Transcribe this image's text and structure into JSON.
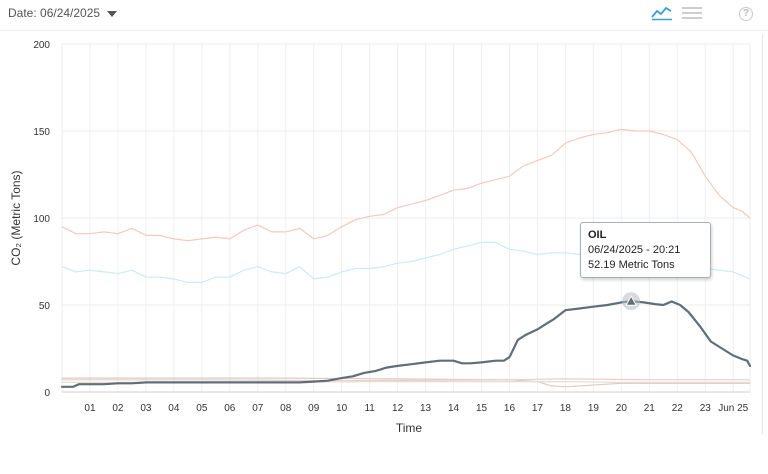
{
  "header": {
    "date_label": "Date: 06/24/2025",
    "chart_view_icon": "line-chart-icon",
    "menu_icon": "hamburger-menu-icon",
    "help_icon": "help-icon",
    "help_glyph": "?"
  },
  "tooltip": {
    "series": "OIL",
    "datetime": "06/24/2025 - 20:21",
    "value_text": "52.19 Metric Tons"
  },
  "chart_data": {
    "type": "line",
    "xlabel": "Time",
    "ylabel": "CO₂ (Metric Tons)",
    "ylim": [
      0,
      200
    ],
    "yticks": [
      0,
      50,
      100,
      150,
      200
    ],
    "xlim": [
      0,
      24.6
    ],
    "xtick_labels": [
      "01",
      "02",
      "03",
      "04",
      "05",
      "06",
      "07",
      "08",
      "09",
      "10",
      "11",
      "12",
      "13",
      "14",
      "15",
      "16",
      "17",
      "18",
      "19",
      "20",
      "21",
      "22",
      "23",
      "Jun 25"
    ],
    "grid": true,
    "colors": {
      "oil": "#5f6e78",
      "total": "#f6c9bd",
      "mid": "#c9edf3",
      "low1": "#d9cdc5",
      "low2": "#e6dcd6",
      "low3": "#eccfc4"
    },
    "highlight": {
      "series": "OIL",
      "x": 20.35,
      "y": 52.19
    },
    "series": [
      {
        "key": "total",
        "x": [
          0,
          0.5,
          1,
          1.5,
          2,
          2.5,
          3,
          3.5,
          4,
          4.5,
          5,
          5.5,
          6,
          6.5,
          7,
          7.5,
          8,
          8.5,
          9,
          9.5,
          10,
          10.5,
          11,
          11.5,
          12,
          12.5,
          13,
          13.5,
          14,
          14.5,
          15,
          15.5,
          16,
          16.5,
          17,
          17.5,
          18,
          18.5,
          19,
          19.5,
          20,
          20.5,
          21,
          21.5,
          22,
          22.5,
          23,
          23.5,
          24,
          24.3,
          24.6
        ],
        "values": [
          95,
          91,
          91,
          92,
          91,
          94,
          90,
          90,
          88,
          87,
          88,
          89,
          88,
          93,
          96,
          92,
          92,
          94,
          88,
          90,
          95,
          99,
          101,
          102,
          106,
          108,
          110,
          113,
          116,
          117,
          120,
          122,
          124,
          130,
          133,
          136,
          143,
          146,
          148,
          149,
          151,
          150,
          150,
          148,
          145,
          138,
          124,
          113,
          106,
          104,
          100
        ]
      },
      {
        "key": "mid",
        "x": [
          0,
          0.5,
          1,
          1.5,
          2,
          2.5,
          3,
          3.5,
          4,
          4.5,
          5,
          5.5,
          6,
          6.5,
          7,
          7.5,
          8,
          8.5,
          9,
          9.5,
          10,
          10.5,
          11,
          11.5,
          12,
          12.5,
          13,
          13.5,
          14,
          14.5,
          15,
          15.5,
          16,
          16.5,
          17,
          17.5,
          18,
          18.5,
          19,
          19.5,
          20,
          20.5,
          21,
          21.5,
          22,
          22.5,
          23,
          23.5,
          24,
          24.3,
          24.6
        ],
        "values": [
          72,
          69,
          70,
          69,
          68,
          70,
          66,
          66,
          65,
          63,
          63,
          66,
          66,
          70,
          72,
          69,
          68,
          72,
          65,
          66,
          69,
          71,
          71,
          72,
          74,
          75,
          77,
          79,
          82,
          84,
          86,
          86,
          82,
          81,
          79,
          80,
          80,
          79,
          80,
          78,
          78,
          77,
          74,
          73,
          72,
          71,
          71,
          70,
          69,
          67,
          65
        ]
      },
      {
        "key": "low1",
        "x": [
          0,
          4,
          8,
          12,
          16,
          17,
          17.5,
          18,
          20,
          22,
          24,
          24.6
        ],
        "values": [
          8,
          8,
          8,
          7.5,
          7,
          6,
          3.5,
          3,
          5,
          5,
          5,
          5
        ]
      },
      {
        "key": "low2",
        "x": [
          0,
          6,
          12,
          17,
          18,
          20,
          22,
          24.6
        ],
        "values": [
          5.5,
          5.5,
          6,
          6,
          6,
          5.5,
          5.5,
          5.5
        ]
      },
      {
        "key": "low3",
        "x": [
          0,
          5,
          10,
          16,
          18,
          21,
          24.6
        ],
        "values": [
          7,
          7,
          6.5,
          7,
          7.5,
          7,
          7
        ]
      },
      {
        "key": "oil",
        "name": "OIL",
        "x": [
          0,
          0.4,
          0.6,
          1,
          1.5,
          2,
          2.5,
          3,
          4,
          5,
          6,
          7,
          8,
          8.5,
          9,
          9.5,
          10,
          10.4,
          10.8,
          11.2,
          11.6,
          12,
          12.5,
          13,
          13.5,
          14,
          14.3,
          14.6,
          15,
          15.5,
          15.8,
          16,
          16.3,
          16.6,
          17,
          17.3,
          17.6,
          18,
          18.5,
          19,
          19.5,
          20,
          20.35,
          20.8,
          21.2,
          21.5,
          21.8,
          22.1,
          22.4,
          22.8,
          23.2,
          23.6,
          24,
          24.3,
          24.5,
          24.6
        ],
        "values": [
          3,
          3,
          4.5,
          4.5,
          4.5,
          5,
          5,
          5.5,
          5.5,
          5.5,
          5.5,
          5.5,
          5.5,
          5.5,
          6,
          6.5,
          8,
          9,
          11,
          12,
          14,
          15,
          16,
          17,
          18,
          18,
          16.5,
          16.5,
          17,
          18,
          18,
          20,
          30,
          33,
          36,
          39,
          42,
          47,
          48,
          49,
          50,
          51.5,
          52.19,
          51.5,
          50.5,
          50,
          52,
          50,
          46,
          38,
          29,
          25,
          21,
          19,
          18,
          15
        ]
      }
    ]
  }
}
